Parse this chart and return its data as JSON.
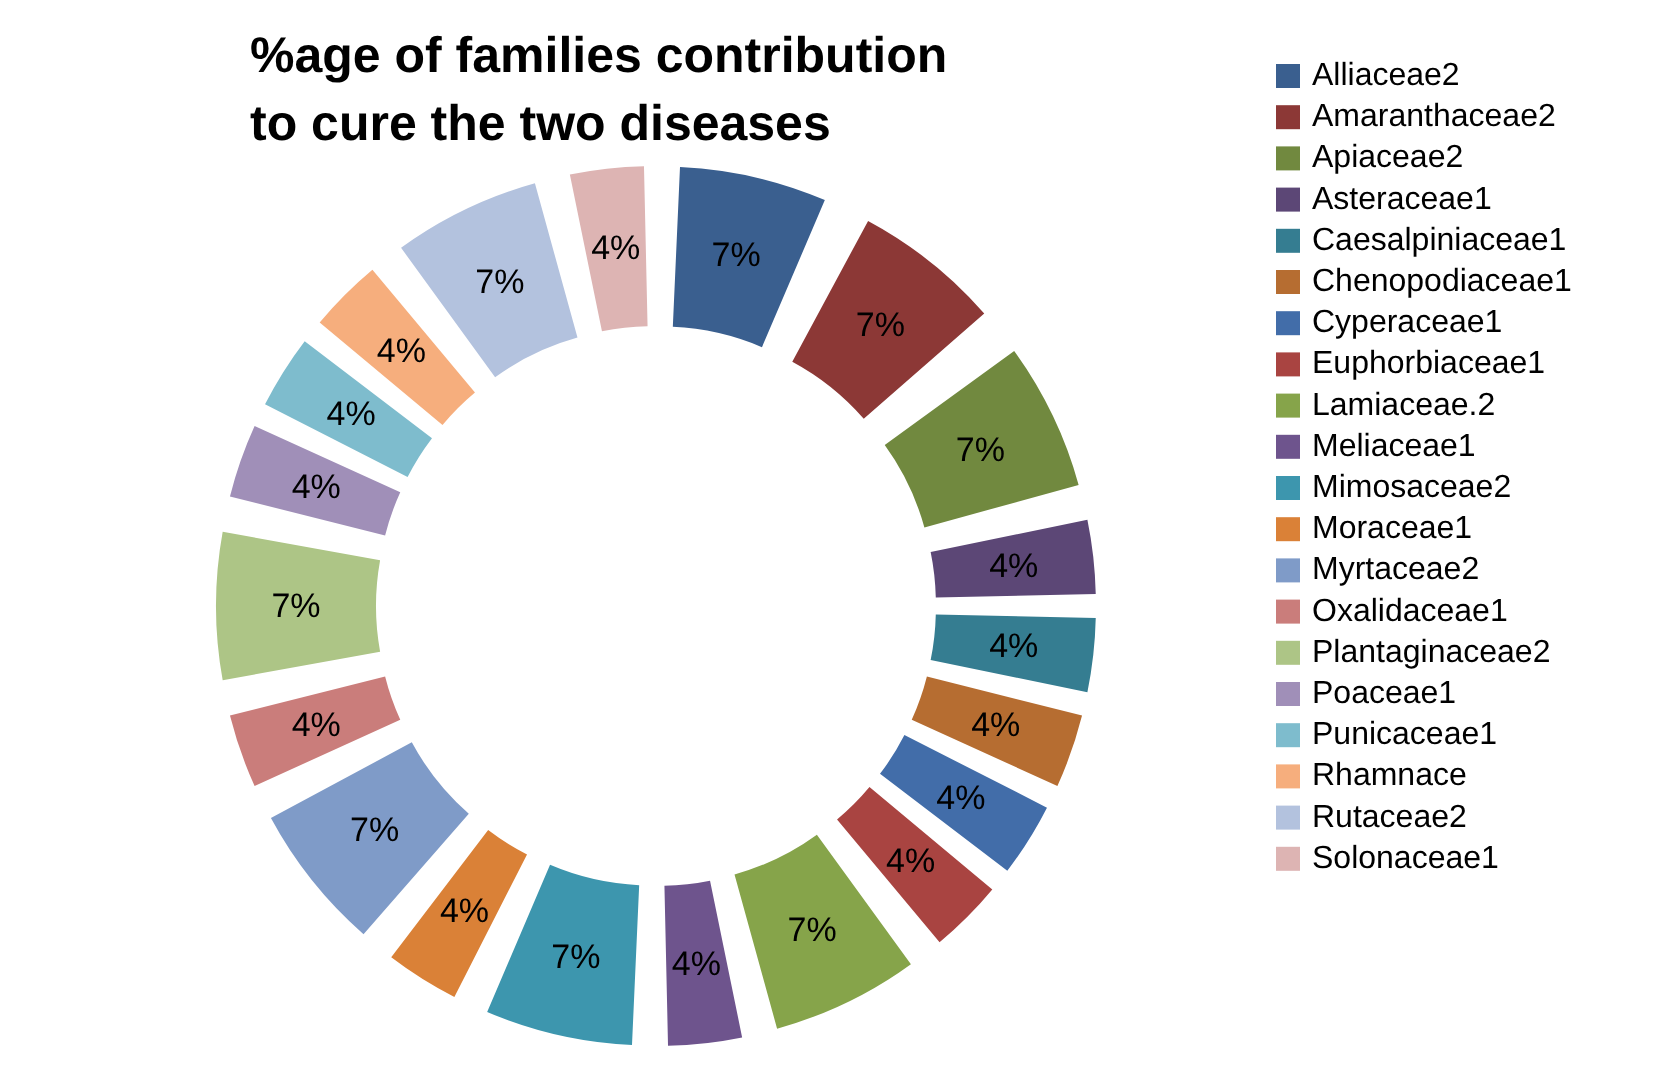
{
  "chart_data": {
    "type": "donut",
    "title": "%age of families contribution\nto cure the  two diseases",
    "categories": [
      "Alliaceae2",
      "Amaranthaceae2",
      "Apiaceae2",
      "Asteraceae1",
      "Caesalpiniaceae1",
      "Chenopodiaceae1",
      "Cyperaceae1",
      "Euphorbiaceae1",
      "Lamiaceae.2",
      "Meliaceae1",
      "Mimosaceae2",
      "Moraceae1",
      "Myrtaceae2",
      "Oxalidaceae1",
      "Plantaginaceae2",
      "Poaceae1",
      "Punicaceae1",
      "Rhamnace",
      "Rutaceae2",
      "Solonaceae1"
    ],
    "values": [
      7.14,
      7.14,
      7.14,
      3.57,
      3.57,
      3.57,
      3.57,
      3.57,
      7.14,
      3.57,
      7.14,
      3.57,
      7.14,
      3.57,
      7.14,
      3.57,
      3.57,
      3.57,
      7.14,
      3.57
    ],
    "value_labels": [
      "7%",
      "7%",
      "7%",
      "4%",
      "4%",
      "4%",
      "4%",
      "4%",
      "7%",
      "4%",
      "7%",
      "4%",
      "7%",
      "4%",
      "7%",
      "4%",
      "4%",
      "4%",
      "7%",
      "4%"
    ],
    "colors": [
      "#3a5f8f",
      "#8c3836",
      "#71893f",
      "#5c4776",
      "#357d91",
      "#b66d31",
      "#426da9",
      "#a94441",
      "#86a44a",
      "#6e548d",
      "#3d96ae",
      "#da8137",
      "#7f9bc8",
      "#ca7d7b",
      "#adc586",
      "#a08fb8",
      "#7ebccd",
      "#f6ae7d",
      "#b3c2de",
      "#ddb4b3"
    ],
    "legend": "right"
  }
}
